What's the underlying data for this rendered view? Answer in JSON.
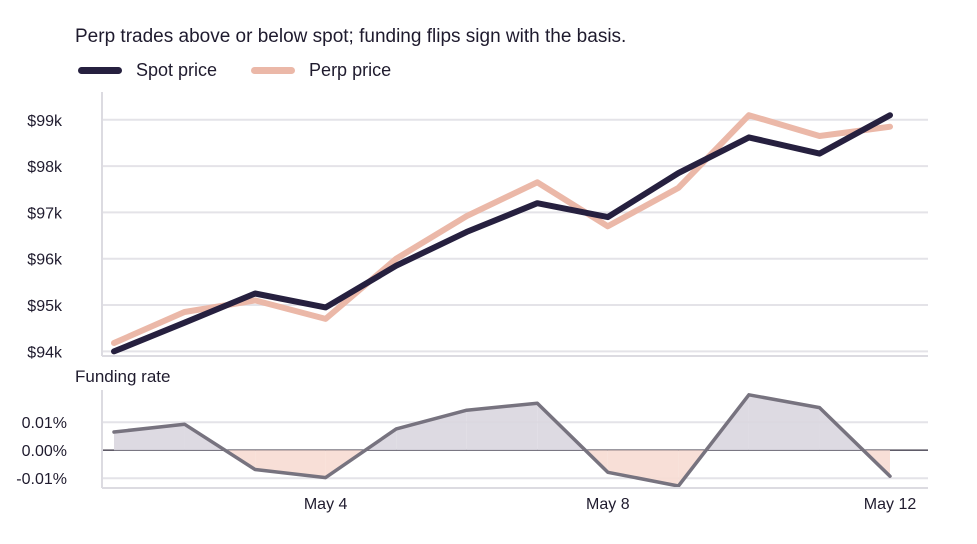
{
  "chart_data": {
    "title": "Perp trades above or below spot; funding flips sign with the basis.",
    "type": "line",
    "x": [
      "May 1",
      "May 2",
      "May 3",
      "May 4",
      "May 5",
      "May 6",
      "May 7",
      "May 8",
      "May 9",
      "May 10",
      "May 11",
      "May 12"
    ],
    "x_tick_labels": [
      "May 4",
      "May 8",
      "May 12"
    ],
    "legend": {
      "placement": "top-left"
    },
    "colors": {
      "spot": "#26203f",
      "perp": "#ebb8a8",
      "funding": "#77737f",
      "fill_positive": "#d9d6df",
      "fill_negative": "#f7dcd3",
      "grid": "#e4e3e8"
    },
    "price_panel": {
      "y_tick_labels": [
        "$94k",
        "$95k",
        "$96k",
        "$97k",
        "$98k",
        "$99k"
      ],
      "ylim": [
        93900,
        99600
      ],
      "series": [
        {
          "name": "Spot price",
          "key": "spot",
          "values": [
            94000,
            94620,
            95250,
            94950,
            95850,
            96580,
            97200,
            96900,
            97850,
            98620,
            98270,
            99100
          ]
        },
        {
          "name": "Perp price",
          "key": "perp",
          "values": [
            94180,
            94850,
            95100,
            94700,
            96000,
            96920,
            97650,
            96700,
            97530,
            99100,
            98650,
            98850
          ]
        }
      ],
      "grid": true
    },
    "funding_panel": {
      "label": "Funding rate",
      "y_tick_labels": [
        "0.01%",
        "0.00%",
        "-0.01%"
      ],
      "ylim": [
        -0.0135,
        0.0215
      ],
      "values": [
        0.0065,
        0.0093,
        -0.0069,
        -0.0098,
        0.0076,
        0.0143,
        0.0168,
        -0.0079,
        -0.0128,
        0.0198,
        0.0152,
        -0.0093
      ],
      "grid": true
    }
  }
}
